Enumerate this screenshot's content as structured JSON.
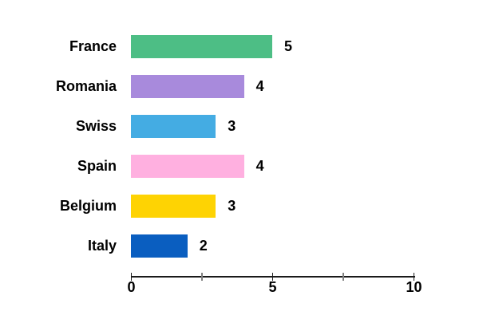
{
  "chart_data": {
    "type": "bar",
    "orientation": "horizontal",
    "title": "",
    "xlabel": "",
    "ylabel": "",
    "categories": [
      "France",
      "Romania",
      "Swiss",
      "Spain",
      "Belgium",
      "Italy"
    ],
    "values": [
      5,
      4,
      3,
      4,
      3,
      2
    ],
    "value_labels": [
      "5",
      "4",
      "3",
      "4",
      "3",
      "2"
    ],
    "bar_colors": [
      "#4DBE85",
      "#A88ADC",
      "#44ACE3",
      "#FFB0E0",
      "#FED303",
      "#0A5EC0"
    ],
    "xlim": [
      0,
      10
    ],
    "x_ticks": [
      {
        "value": 0,
        "label": "0",
        "major": true
      },
      {
        "value": 2.5,
        "label": "",
        "major": false
      },
      {
        "value": 5,
        "label": "5",
        "major": true
      },
      {
        "value": 7.5,
        "label": "",
        "major": false
      },
      {
        "value": 10,
        "label": "10",
        "major": true
      }
    ],
    "grid": false,
    "legend": false,
    "background_color": "#ffffff",
    "text_color": "#000000",
    "axis_color": "#1a1a1a",
    "minor_tick_color": "#808080"
  }
}
